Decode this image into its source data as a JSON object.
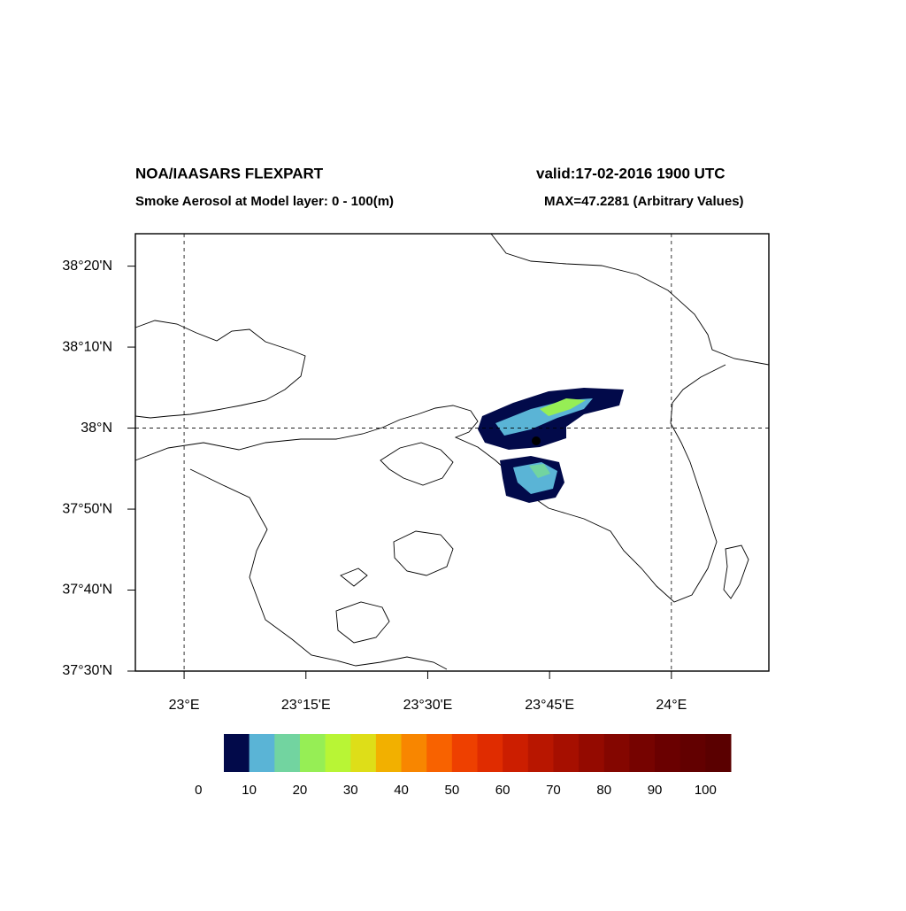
{
  "header": {
    "title_left": "NOA/IAASARS FLEXPART",
    "title_right": "valid:17-02-2016 1900 UTC",
    "subtitle_left": "Smoke Aerosol at Model layer: 0 - 100(m)",
    "subtitle_right": "MAX=47.2281 (Arbitrary Values)"
  },
  "map": {
    "xlim": [
      22.9,
      24.2
    ],
    "ylim": [
      37.5,
      38.4
    ],
    "xticks": [
      {
        "value": 23,
        "label": "23°E"
      },
      {
        "value": 23.25,
        "label": "23°15'E"
      },
      {
        "value": 23.5,
        "label": "23°30'E"
      },
      {
        "value": 23.75,
        "label": "23°45'E"
      },
      {
        "value": 24,
        "label": "24°E"
      }
    ],
    "yticks": [
      {
        "value": 37.5,
        "label": "37°30'N"
      },
      {
        "value": 37.6667,
        "label": "37°40'N"
      },
      {
        "value": 37.8333,
        "label": "37°50'N"
      },
      {
        "value": 38,
        "label": "38°N"
      },
      {
        "value": 38.1667,
        "label": "38°10'N"
      },
      {
        "value": 38.3333,
        "label": "38°20'N"
      }
    ],
    "grid_x": [
      23,
      24
    ],
    "grid_y": [
      38
    ]
  },
  "colorbar": {
    "range": [
      5,
      105
    ],
    "colors": [
      "#020a4a",
      "#5ab4d6",
      "#72d4a0",
      "#96ee55",
      "#b8f535",
      "#dede18",
      "#f2b000",
      "#f88600",
      "#f86200",
      "#ee4000",
      "#e02c00",
      "#cc1e00",
      "#b81600",
      "#a60f00",
      "#940a00",
      "#840600",
      "#760300",
      "#6a0000",
      "#620000",
      "#5a0000"
    ],
    "labels": [
      0,
      10,
      20,
      30,
      40,
      50,
      60,
      70,
      80,
      90,
      100
    ]
  }
}
